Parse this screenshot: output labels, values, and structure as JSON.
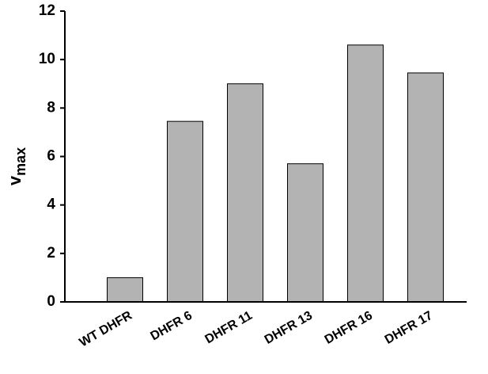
{
  "chart_data": {
    "type": "bar",
    "y_label": "v",
    "y_label_subscript": "max",
    "categories": [
      "WT DHFR",
      "DHFR 6",
      "DHFR 11",
      "DHFR 13",
      "DHFR 16",
      "DHFR 17"
    ],
    "values": [
      1.0,
      7.45,
      9.0,
      5.7,
      10.6,
      9.45
    ],
    "color": "#b3b3b3",
    "ylim": [
      0,
      12
    ],
    "yticks": [
      0,
      2,
      4,
      6,
      8,
      10,
      12
    ]
  }
}
